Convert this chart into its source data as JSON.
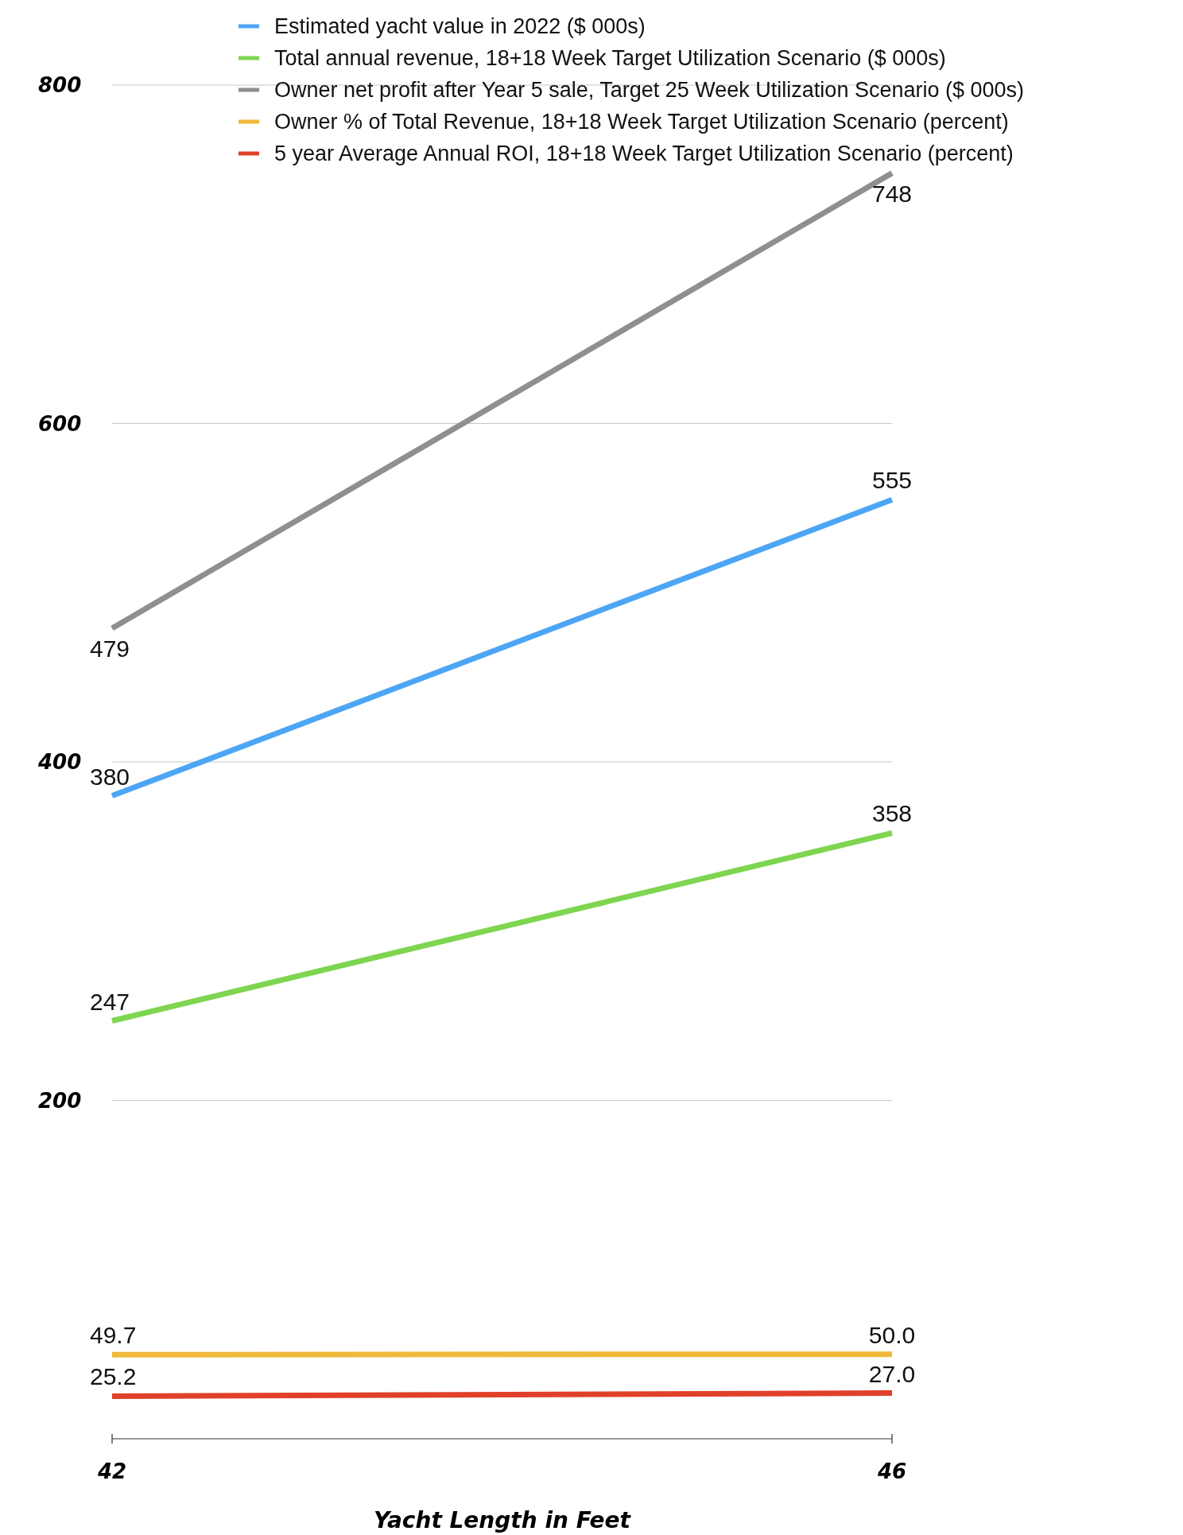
{
  "chart_data": {
    "type": "line",
    "xlabel": "Yacht Length in Feet",
    "x": [
      42,
      46
    ],
    "xlim": [
      42,
      46
    ],
    "xticks": [
      42,
      46
    ],
    "ylim": [
      0,
      800
    ],
    "yticks": [
      200,
      400,
      600,
      800
    ],
    "grid": "y",
    "legend": "top",
    "marker": "none",
    "line_style": "solid",
    "series": [
      {
        "name": "Estimated yacht value in 2022 ($ 000s)",
        "color": "#4da6f5",
        "values": [
          380,
          555
        ],
        "value_labels": [
          "380",
          "555"
        ]
      },
      {
        "name": "Total annual revenue, 18+18 Week Target Utilization Scenario ($ 000s)",
        "color": "#7ed550",
        "values": [
          247,
          358
        ],
        "value_labels": [
          "247",
          "358"
        ]
      },
      {
        "name": "Owner net profit after Year 5 sale, Target 25 Week Utilization Scenario ($ 000s)",
        "color": "#8f8f8f",
        "values": [
          479,
          748
        ],
        "value_labels": [
          "479",
          "748"
        ]
      },
      {
        "name": "Owner % of Total Revenue, 18+18 Week Target Utilization Scenario (percent)",
        "color": "#f0b93a",
        "values": [
          49.7,
          50
        ],
        "value_labels": [
          "49.7",
          "50.0"
        ]
      },
      {
        "name": "5 year Average Annual ROI, 18+18 Week Target Utilization Scenario (percent)",
        "color": "#e0402a",
        "values": [
          25.2,
          27
        ],
        "value_labels": [
          "25.2",
          "27.0"
        ]
      }
    ]
  }
}
